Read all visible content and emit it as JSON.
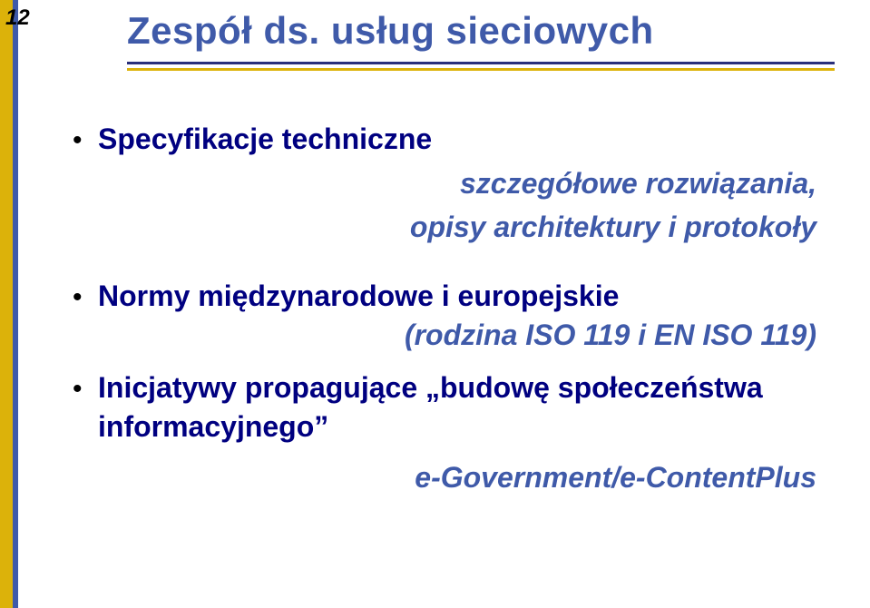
{
  "slide_number": "12",
  "title": "Zespół ds. usług sieciowych",
  "colors": {
    "gold": "#dcb20a",
    "blue_bar": "#3f5aa9",
    "title_blue": "#3f5aa9",
    "deep_navy": "#000080",
    "italic_blue": "#3f5aa9",
    "underline_dark": "#2a2f7a"
  },
  "bullets": [
    {
      "heading": "Specyfikacje techniczne",
      "sub": "szczegółowe rozwiązania,\nopisy architektury i protokoły"
    },
    {
      "heading": "Normy międzynarodowe i europejskie",
      "sub": "(rodzina ISO 119 i EN ISO 119)"
    },
    {
      "heading": "Inicjatywy propagujące „budowę społeczeństwa informacyjnego”",
      "sub": "e-Government/e-ContentPlus"
    }
  ]
}
